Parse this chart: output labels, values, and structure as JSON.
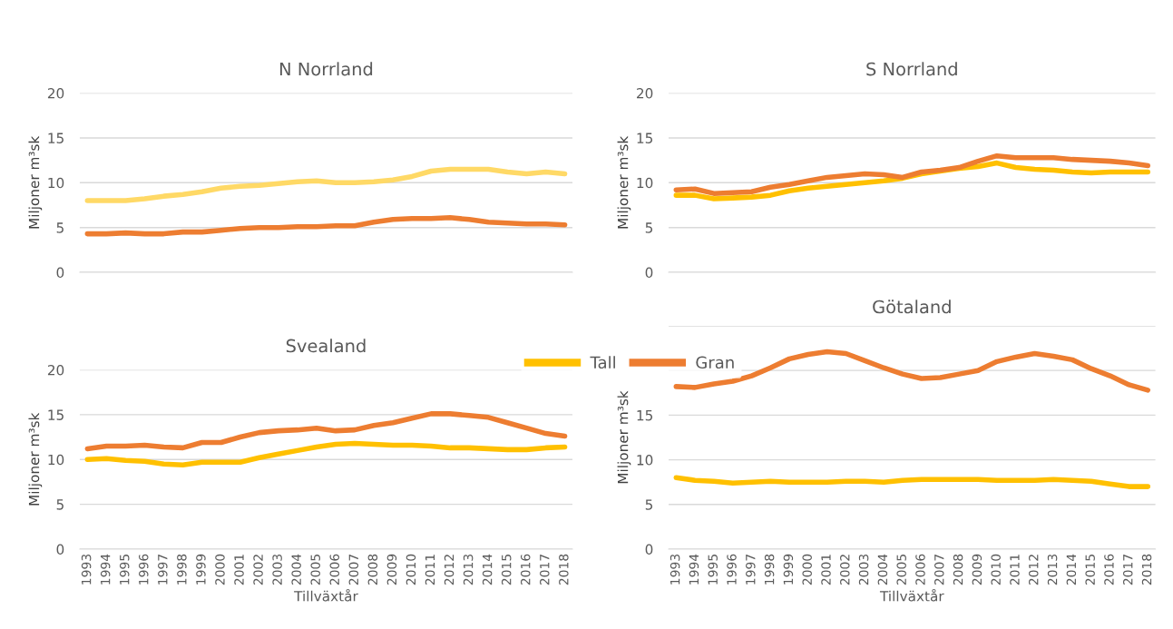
{
  "chart_data": [
    {
      "type": "line",
      "title": "N Norrland",
      "ylabel": "Miljoner m³sk",
      "categories": [
        "1993",
        "1994",
        "1995",
        "1996",
        "1997",
        "1998",
        "1999",
        "2000",
        "2001",
        "2002",
        "2003",
        "2004",
        "2005",
        "2006",
        "2007",
        "2008",
        "2009",
        "2010",
        "2011",
        "2012",
        "2013",
        "2014",
        "2015",
        "2016",
        "2017",
        "2018"
      ],
      "ylim": [
        0,
        20
      ],
      "yticks": [
        0,
        5,
        10,
        15,
        20
      ],
      "grid": "y",
      "tick_labels": "y",
      "series": [
        {
          "color": "#ffd966",
          "values": [
            8.0,
            8.0,
            8.0,
            8.2,
            8.5,
            8.7,
            9.0,
            9.4,
            9.6,
            9.7,
            9.9,
            10.1,
            10.2,
            10.0,
            10.0,
            10.1,
            10.3,
            10.7,
            11.3,
            11.5,
            11.5,
            11.5,
            11.2,
            11.0,
            11.2,
            11.0
          ]
        },
        {
          "color": "#ed7d31",
          "values": [
            4.3,
            4.3,
            4.4,
            4.3,
            4.3,
            4.5,
            4.5,
            4.7,
            4.9,
            5.0,
            5.0,
            5.1,
            5.1,
            5.2,
            5.2,
            5.6,
            5.9,
            6.0,
            6.0,
            6.1,
            5.9,
            5.6,
            5.5,
            5.4,
            5.4,
            5.3
          ]
        }
      ]
    },
    {
      "type": "line",
      "title": "S Norrland",
      "ylabel": "Miljoner m³sk",
      "categories": [
        "1993",
        "1994",
        "1995",
        "1996",
        "1997",
        "1998",
        "1999",
        "2000",
        "2001",
        "2002",
        "2003",
        "2004",
        "2005",
        "2006",
        "2007",
        "2008",
        "2009",
        "2010",
        "2011",
        "2012",
        "2013",
        "2014",
        "2015",
        "2016",
        "2017",
        "2018"
      ],
      "ylim": [
        0,
        20
      ],
      "yticks": [
        0,
        5,
        10,
        15,
        20
      ],
      "grid": "y",
      "tick_labels": "y",
      "series": [
        {
          "color": "#ffc000",
          "values": [
            8.6,
            8.6,
            8.2,
            8.3,
            8.4,
            8.6,
            9.1,
            9.4,
            9.6,
            9.8,
            10.0,
            10.2,
            10.5,
            11.0,
            11.3,
            11.6,
            11.8,
            12.2,
            11.7,
            11.5,
            11.4,
            11.2,
            11.1,
            11.2,
            11.2,
            11.2
          ]
        },
        {
          "color": "#ed7d31",
          "values": [
            9.2,
            9.3,
            8.8,
            8.9,
            9.0,
            9.5,
            9.8,
            10.2,
            10.6,
            10.8,
            11.0,
            10.9,
            10.6,
            11.2,
            11.4,
            11.7,
            12.4,
            13.0,
            12.8,
            12.8,
            12.8,
            12.6,
            12.5,
            12.4,
            12.2,
            11.9
          ]
        }
      ]
    },
    {
      "type": "line",
      "title": "Svealand",
      "ylabel": "Miljoner m³sk",
      "xlabel": "Tillväxtår",
      "categories": [
        "1993",
        "1994",
        "1995",
        "1996",
        "1997",
        "1998",
        "1999",
        "2000",
        "2001",
        "2002",
        "2003",
        "2004",
        "2005",
        "2006",
        "2007",
        "2008",
        "2009",
        "2010",
        "2011",
        "2012",
        "2013",
        "2014",
        "2015",
        "2016",
        "2017",
        "2018"
      ],
      "ylim": [
        0,
        20
      ],
      "yticks": [
        0,
        5,
        10,
        15,
        20
      ],
      "grid": "y",
      "legend": "top right",
      "series": [
        {
          "name": "Tall",
          "color": "#ffc000",
          "values": [
            10.0,
            10.1,
            9.9,
            9.8,
            9.5,
            9.4,
            9.7,
            9.7,
            9.7,
            10.2,
            10.6,
            11.0,
            11.4,
            11.7,
            11.8,
            11.7,
            11.6,
            11.6,
            11.5,
            11.3,
            11.3,
            11.2,
            11.1,
            11.1,
            11.3,
            11.4
          ]
        },
        {
          "name": "Gran",
          "color": "#ed7d31",
          "values": [
            11.2,
            11.5,
            11.5,
            11.6,
            11.4,
            11.3,
            11.9,
            11.9,
            12.5,
            13.0,
            13.2,
            13.3,
            13.5,
            13.2,
            13.3,
            13.8,
            14.1,
            14.6,
            15.1,
            15.1,
            14.9,
            14.7,
            14.1,
            13.5,
            12.9,
            12.6
          ]
        }
      ]
    },
    {
      "type": "line",
      "title": "Götaland",
      "ylabel": "Miljoner m³sk",
      "xlabel": "Tillväxtår",
      "categories": [
        "1993",
        "1994",
        "1995",
        "1996",
        "1997",
        "1998",
        "1999",
        "2000",
        "2001",
        "2002",
        "2003",
        "2004",
        "2005",
        "2006",
        "2007",
        "2008",
        "2009",
        "2010",
        "2011",
        "2012",
        "2013",
        "2014",
        "2015",
        "2016",
        "2017",
        "2018"
      ],
      "ylim": [
        0,
        25
      ],
      "yticks": [
        0,
        5,
        10,
        15,
        {
          "value": 20,
          "label": null
        },
        {
          "value": 25,
          "label": null
        }
      ],
      "grid": "y",
      "series": [
        {
          "color": "#ffc000",
          "values": [
            8.0,
            7.7,
            7.6,
            7.4,
            7.5,
            7.6,
            7.5,
            7.5,
            7.5,
            7.6,
            7.6,
            7.5,
            7.7,
            7.8,
            7.8,
            7.8,
            7.8,
            7.7,
            7.7,
            7.7,
            7.8,
            7.7,
            7.6,
            7.3,
            7.0,
            7.0
          ]
        },
        {
          "color": "#ed7d31",
          "values": [
            18.2,
            18.1,
            18.5,
            18.8,
            19.4,
            20.3,
            21.3,
            21.8,
            22.1,
            21.9,
            21.1,
            20.3,
            19.6,
            19.1,
            19.2,
            19.6,
            20.0,
            21.0,
            21.5,
            21.9,
            21.6,
            21.2,
            20.2,
            19.4,
            18.4,
            17.8
          ]
        }
      ]
    }
  ]
}
